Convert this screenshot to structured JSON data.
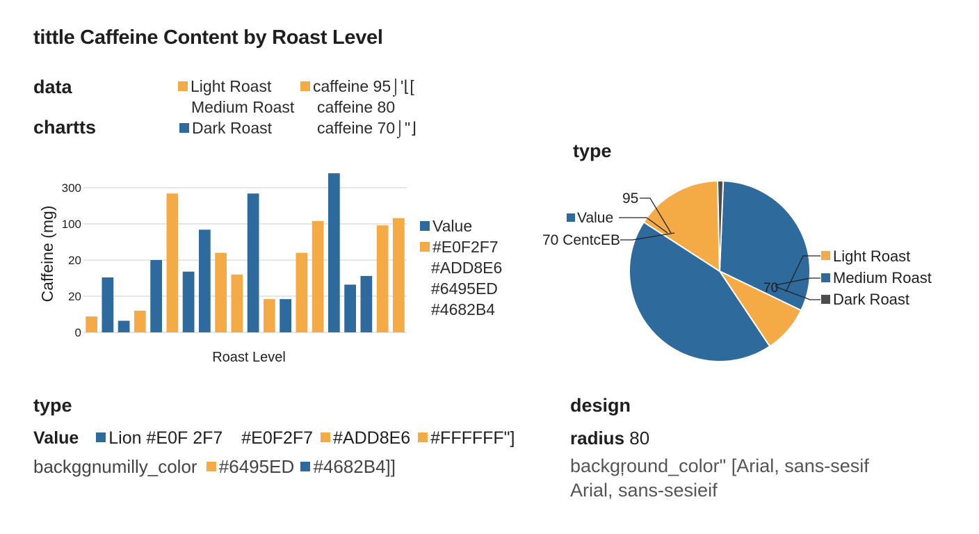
{
  "title": "tittle Caffeine Content by Roast Level",
  "colors": {
    "blue": "#2E6A9C",
    "orange": "#F4AA45",
    "dark": "#4D4D4D",
    "grid": "#D6D6D6"
  },
  "data_section": {
    "label_data": "data",
    "label_charts": "chartts",
    "rows": [
      {
        "swatch": "orange",
        "name": "Light Roast",
        "swatch2": "orange",
        "value_text": "caffeine  95⌡'⌊["
      },
      {
        "swatch": "",
        "name": "Medium Roast",
        "swatch2": "",
        "value_text": "caffeine  80"
      },
      {
        "swatch": "blue",
        "name": "Dark Roast",
        "swatch2": "",
        "value_text": "caffeine 70⌡\"⌋"
      }
    ]
  },
  "bar_legend": [
    {
      "swatch": "blue",
      "text": "Value"
    },
    {
      "swatch": "orange",
      "text": "#E0F2F7"
    },
    {
      "swatch": "",
      "text": "#ADD8E6"
    },
    {
      "swatch": "",
      "text": "#6495ED"
    },
    {
      "swatch": "",
      "text": "#4682B4"
    }
  ],
  "pie_section": {
    "heading": "type",
    "callouts": [
      "95",
      "Value",
      "70 CentcEB",
      "70"
    ],
    "legend": [
      {
        "swatch": "orange",
        "text": "Light Roast"
      },
      {
        "swatch": "blue",
        "text": "Medium Roast"
      },
      {
        "swatch": "dark",
        "text": "Dark Roast"
      }
    ]
  },
  "type_section": {
    "heading": "type",
    "row1_label": "Value",
    "row1_items": [
      {
        "swatch": "blue",
        "text": "Lion  #E0F 2F7"
      },
      {
        "swatch": "",
        "text": "#E0F2F7"
      },
      {
        "swatch": "orange",
        "text": "#ADD8E6"
      },
      {
        "swatch": "orange",
        "text": "#FFFFFF\"]"
      }
    ],
    "row2_label": "backggnumilly_color",
    "row2_items": [
      {
        "swatch": "orange",
        "text": "#6495ED"
      },
      {
        "swatch": "blue",
        "text": "#4682B4]]"
      }
    ]
  },
  "design_section": {
    "heading": "design",
    "radius_label": "radius",
    "radius_value": "80",
    "line1": "backgŗound_color\"  [Arial, sans-sesif",
    "line2": "Arial, sans-sesieif"
  },
  "chart_data": [
    {
      "type": "bar",
      "title": "",
      "xlabel": "Roast Level",
      "ylabel": "Caffeine (mg)",
      "yticks": [
        "300",
        "100",
        "20",
        "20",
        "0"
      ],
      "bars": [
        {
          "series": "orange",
          "value": 0.11
        },
        {
          "series": "blue",
          "value": 0.38
        },
        {
          "series": "blue",
          "value": 0.08
        },
        {
          "series": "orange",
          "value": 0.15
        },
        {
          "series": "blue",
          "value": 0.5
        },
        {
          "series": "orange",
          "value": 0.96
        },
        {
          "series": "blue",
          "value": 0.42
        },
        {
          "series": "blue",
          "value": 0.71
        },
        {
          "series": "orange",
          "value": 0.55
        },
        {
          "series": "orange",
          "value": 0.4
        },
        {
          "series": "blue",
          "value": 0.96
        },
        {
          "series": "orange",
          "value": 0.23
        },
        {
          "series": "blue",
          "value": 0.23
        },
        {
          "series": "orange",
          "value": 0.55
        },
        {
          "series": "orange",
          "value": 0.77
        },
        {
          "series": "blue",
          "value": 1.1
        },
        {
          "series": "blue",
          "value": 0.33
        },
        {
          "series": "blue",
          "value": 0.39
        },
        {
          "series": "orange",
          "value": 0.74
        },
        {
          "series": "orange",
          "value": 0.79
        }
      ],
      "value_scale": "fraction of y-axis height (0 = baseline, 1 = top gridline)",
      "grid": true,
      "legend_position": "right"
    },
    {
      "type": "pie",
      "slices": [
        {
          "color": "blue",
          "share": 0.315
        },
        {
          "color": "orange",
          "share": 0.085
        },
        {
          "color": "blue",
          "share": 0.435
        },
        {
          "color": "orange",
          "share": 0.155
        },
        {
          "color": "dark",
          "share": 0.01
        }
      ]
    }
  ]
}
